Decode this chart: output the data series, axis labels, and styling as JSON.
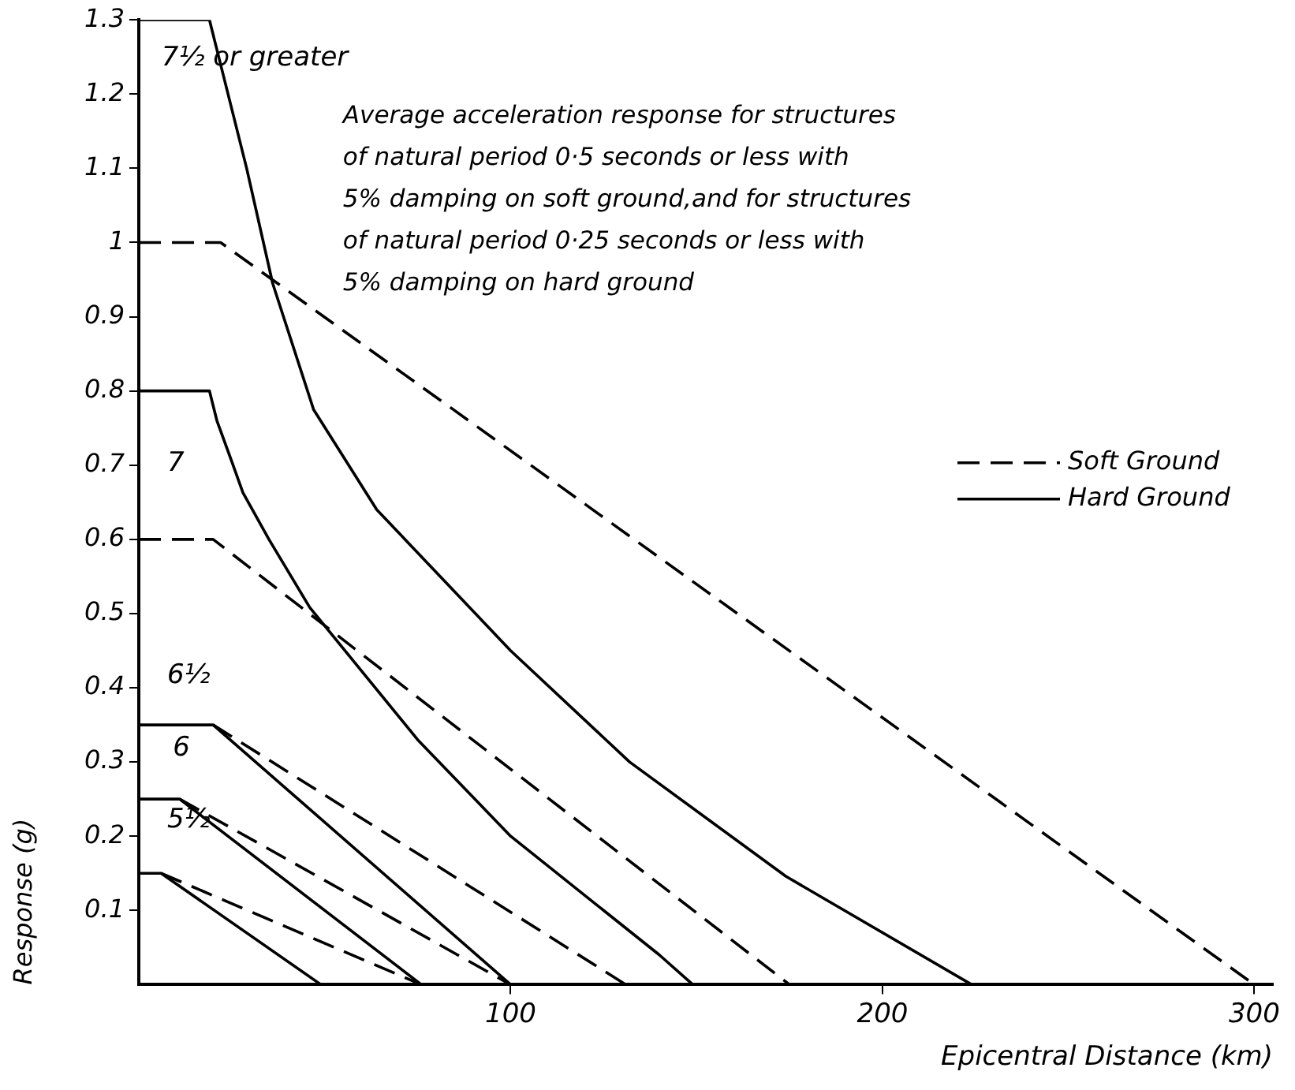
{
  "chart_data": {
    "type": "line",
    "xlabel": "Epicentral Distance (km)",
    "ylabel": "Response (g)",
    "xlim": [
      0,
      305
    ],
    "ylim": [
      0,
      1.3
    ],
    "xticks": [
      100,
      200,
      300
    ],
    "yticks": [
      0.1,
      0.2,
      0.3,
      0.4,
      0.5,
      0.6,
      0.7,
      0.8,
      0.9,
      1.0,
      1.1,
      1.2,
      1.3
    ],
    "grid": false,
    "legend": "right",
    "marker": "none",
    "series": [
      {
        "name": "Soft Ground",
        "color": "#000000",
        "line_style": "dashed",
        "x": [
          0,
          22,
          300
        ],
        "values": [
          1.0,
          1.0,
          0
        ]
      },
      {
        "name": "Hard Ground",
        "color": "#000000",
        "line_style": "solid",
        "x": [
          0,
          19,
          21,
          29,
          36,
          47,
          64,
          100,
          132,
          174,
          224
        ],
        "values": [
          1.3,
          1.3,
          1.26,
          1.1,
          0.945,
          0.775,
          0.64,
          0.45,
          0.3,
          0.146,
          0
        ]
      },
      {
        "color": "#000000",
        "line_style": "dashed",
        "x": [
          0,
          20,
          175
        ],
        "values": [
          0.6,
          0.6,
          0
        ]
      },
      {
        "color": "#000000",
        "line_style": "solid",
        "x": [
          0,
          19,
          21,
          25,
          28,
          35,
          46,
          75,
          100,
          140,
          149
        ],
        "values": [
          0.8,
          0.8,
          0.76,
          0.705,
          0.663,
          0.6,
          0.508,
          0.33,
          0.2,
          0.04,
          0
        ]
      },
      {
        "color": "#000000",
        "line_style": "dashed",
        "x": [
          20,
          131
        ],
        "values": [
          0.35,
          0
        ]
      },
      {
        "color": "#000000",
        "line_style": "solid",
        "x": [
          0,
          20,
          100
        ],
        "values": [
          0.35,
          0.35,
          0
        ]
      },
      {
        "color": "#000000",
        "line_style": "dashed",
        "x": [
          11,
          100
        ],
        "values": [
          0.25,
          0
        ]
      },
      {
        "color": "#000000",
        "line_style": "solid",
        "x": [
          0,
          11,
          76
        ],
        "values": [
          0.25,
          0.25,
          0
        ]
      },
      {
        "color": "#000000",
        "line_style": "dashed",
        "x": [
          6,
          76
        ],
        "values": [
          0.15,
          0
        ]
      },
      {
        "color": "#000000",
        "line_style": "solid",
        "x": [
          0,
          6,
          49
        ],
        "values": [
          0.15,
          0.15,
          0
        ]
      }
    ],
    "annotations": [
      "7½ or greater",
      "7",
      "6½",
      "6",
      "5½",
      "Average acceleration response for structures\nof natural period 0·5 seconds or less with\n5% damping on soft ground,and for structures\nof natural period 0·25 seconds or less with\n5% damping on hard ground"
    ]
  }
}
